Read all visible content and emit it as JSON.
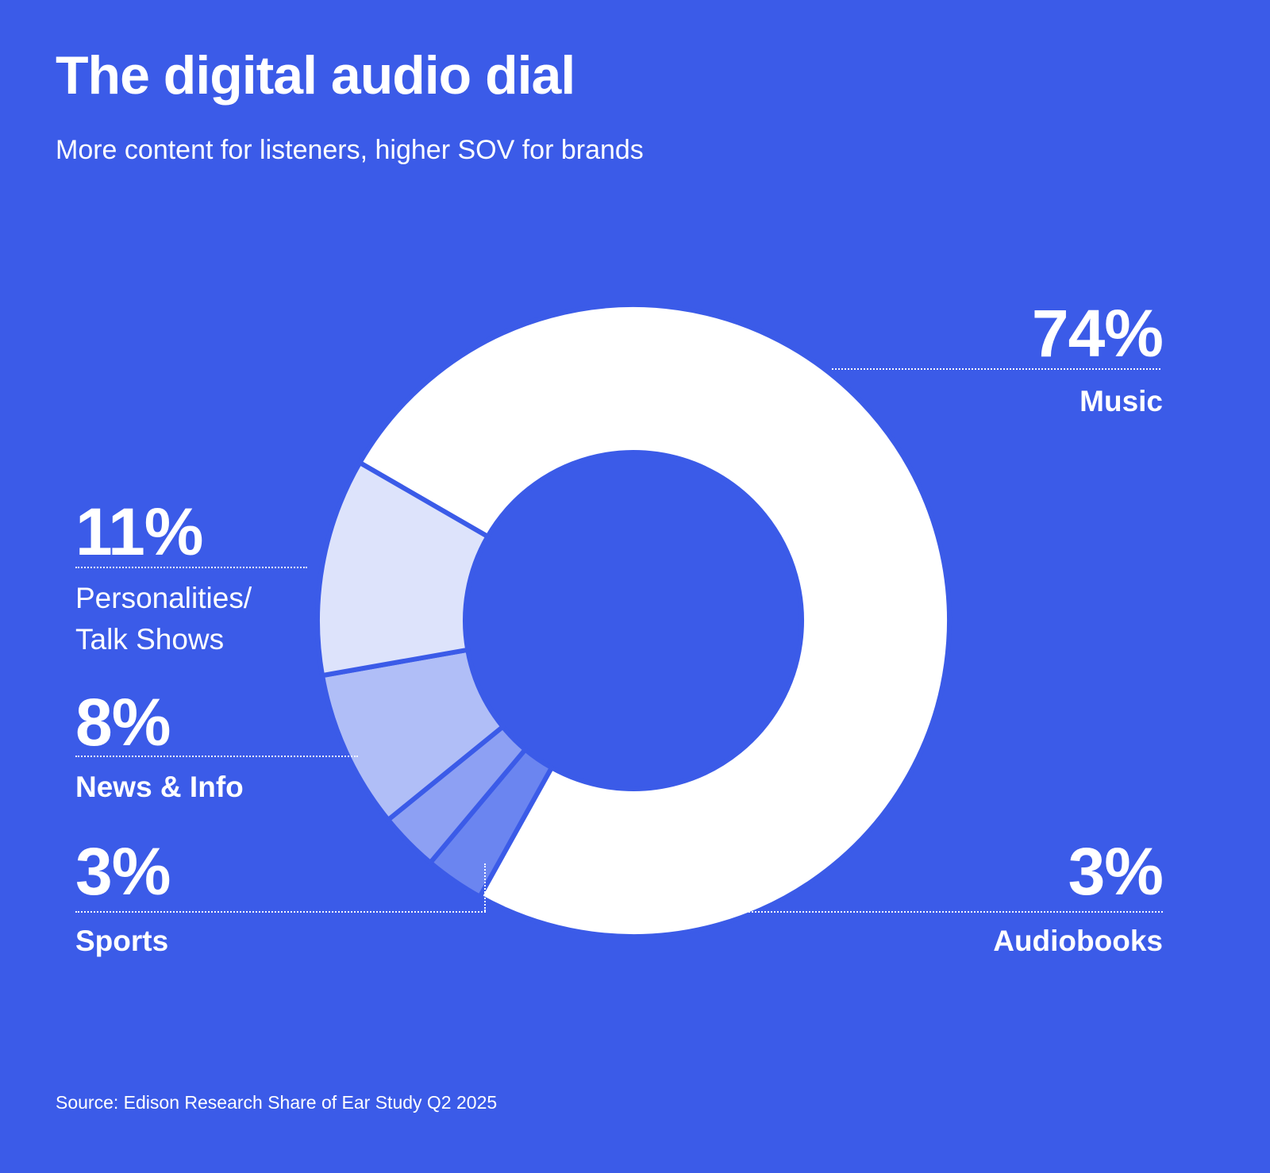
{
  "title": "The digital audio dial",
  "subtitle": "More content for listeners, higher SOV for brands",
  "source": "Source: Edison Research Share of Ear Study Q2 2025",
  "colors": {
    "background": "#3b5be8",
    "text": "#ffffff",
    "leader_line": "#ffffff"
  },
  "chart_data": {
    "type": "pie",
    "donut": true,
    "title": "The digital audio dial",
    "subtitle": "More content for listeners, higher SOV for brands",
    "units": "percent share of listening",
    "start_angle_deg": 300,
    "direction": "clockwise",
    "legend_position": "callout-labels",
    "segments": [
      {
        "label": "Music",
        "value": 74,
        "pct": "74%",
        "color": "#ffffff"
      },
      {
        "label": "Audiobooks",
        "value": 3,
        "pct": "3%",
        "color": "#6b85f0"
      },
      {
        "label": "Sports",
        "value": 3,
        "pct": "3%",
        "color": "#8da0f3"
      },
      {
        "label": "News & Info",
        "value": 8,
        "pct": "8%",
        "color": "#b0bef7"
      },
      {
        "label": "Personalities/Talk Shows",
        "value": 11,
        "pct": "11%",
        "color": "#dde3fb",
        "line1": "Personalities/",
        "line2": "Talk Shows"
      }
    ]
  }
}
